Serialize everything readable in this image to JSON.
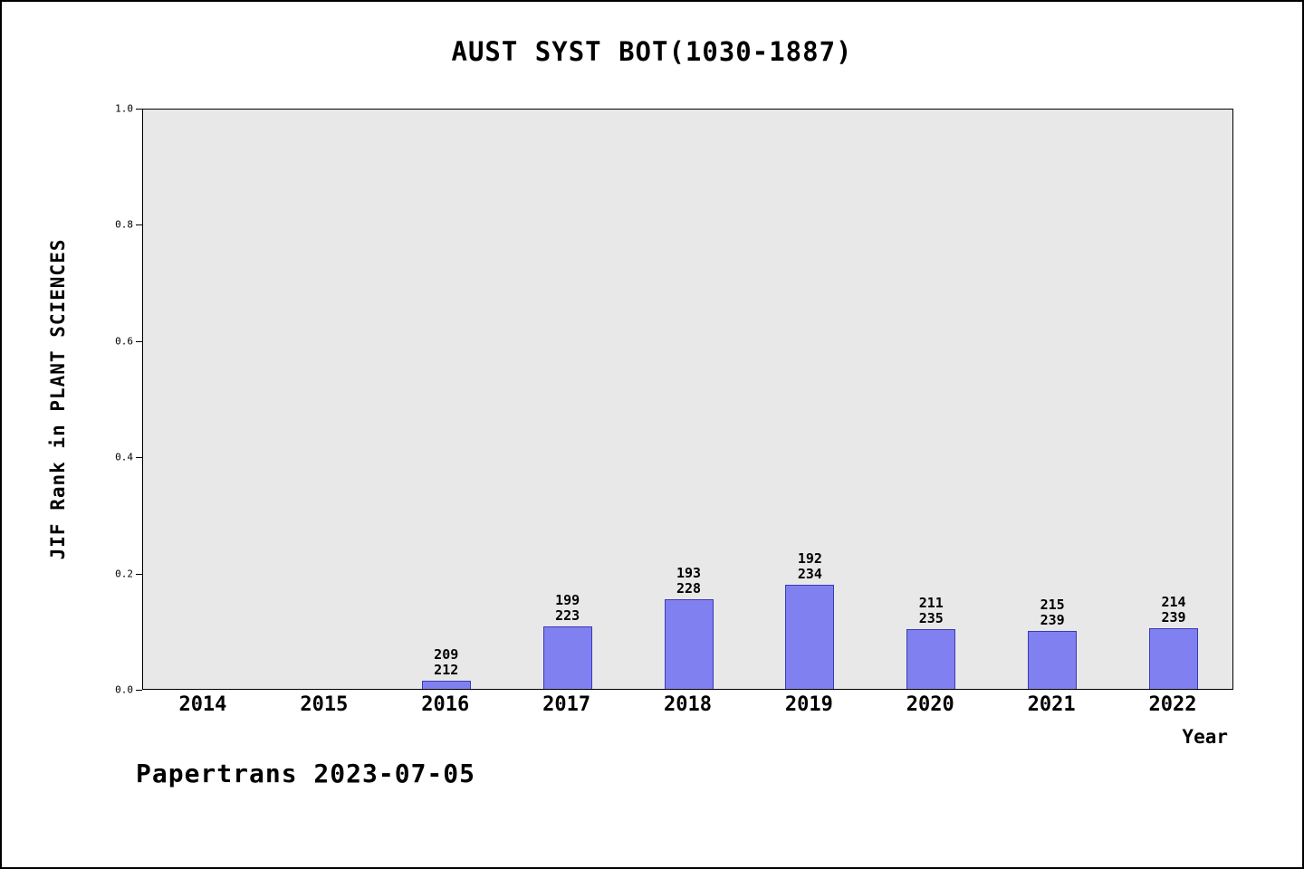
{
  "title": "AUST SYST BOT(1030-1887)",
  "footer": "Papertrans 2023-07-05",
  "chart_data": {
    "type": "bar",
    "title": "AUST SYST BOT(1030-1887)",
    "xlabel": "Year",
    "ylabel": "JIF Rank in PLANT SCIENCES",
    "categories": [
      "2014",
      "2015",
      "2016",
      "2017",
      "2018",
      "2019",
      "2020",
      "2021",
      "2022"
    ],
    "values": [
      0,
      0,
      0.0142,
      0.1076,
      0.1535,
      0.1795,
      0.1021,
      0.1004,
      0.1046
    ],
    "bar_label_top": [
      null,
      null,
      "209",
      "199",
      "193",
      "192",
      "211",
      "215",
      "214"
    ],
    "bar_label_bottom": [
      null,
      null,
      "212",
      "223",
      "228",
      "234",
      "235",
      "239",
      "239"
    ],
    "ylim": [
      0,
      1
    ],
    "yticks": [
      0.0,
      0.2,
      0.4,
      0.6,
      0.8,
      1.0
    ],
    "ytick_labels": [
      "0.0",
      "0.2",
      "0.4",
      "0.6",
      "0.8",
      "1.0"
    ],
    "legend": "none",
    "grid": false,
    "bar_color": "#8080f0",
    "plot_background": "#e8e8e8"
  }
}
